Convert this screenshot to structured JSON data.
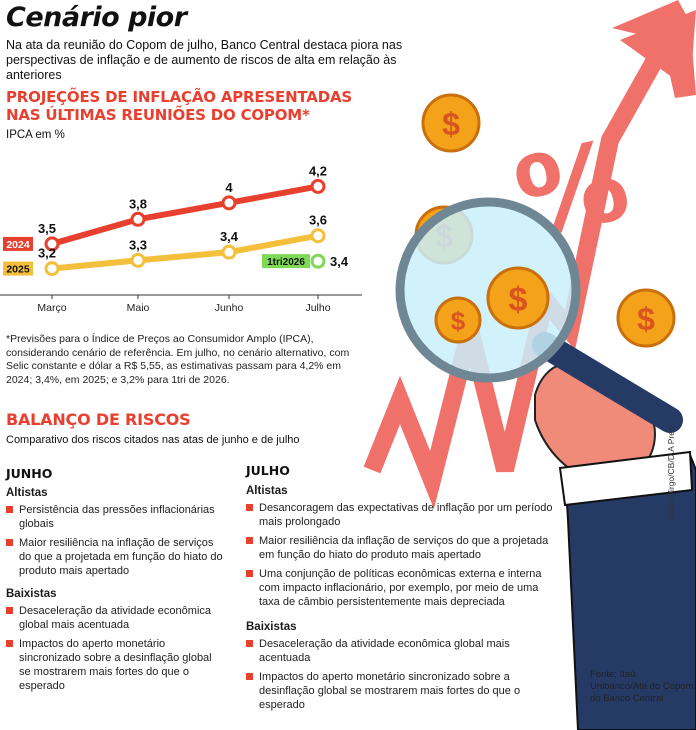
{
  "header": {
    "title": "Cenário pior",
    "subtitle": "Na ata da reunião do Copom de julho, Banco Central destaca piora nas perspectivas de inflação e de aumento de riscos de alta em relação às anteriores"
  },
  "projections": {
    "heading_line1": "PROJEÇÕES DE INFLAÇÃO APRESENTADAS",
    "heading_line2": "NAS ÚLTIMAS REUNIÕES DO COPOM*",
    "unit_label": "IPCA em %",
    "footnote": "*Previsões para o Índice de Preços ao Consumidor Amplo (IPCA), considerando cenário de referência. Em julho, no cenário alternativo, com Selic constante e dólar a R$ 5,55, as estimativas passam para 4,2% em 2024; 3,4%, em 2025; e 3,2% para 1tri de 2026."
  },
  "chart_data": {
    "type": "line",
    "categories": [
      "Março",
      "Maio",
      "Junho",
      "Julho"
    ],
    "series": [
      {
        "name": "2024",
        "values": [
          3.5,
          3.8,
          4.0,
          4.2
        ],
        "labels": [
          "3,5",
          "3,8",
          "4",
          "4,2"
        ],
        "color": "#e8402f"
      },
      {
        "name": "2025",
        "values": [
          3.2,
          3.3,
          3.4,
          3.6
        ],
        "labels": [
          "3,2",
          "3,3",
          "3,4",
          "3,6"
        ],
        "color": "#f4bf3a"
      }
    ],
    "extra_point": {
      "name": "1tri2026",
      "category": "Julho",
      "value": 3.4,
      "label": "3,4",
      "color": "#7ed957"
    },
    "ylim": [
      3.0,
      4.4
    ],
    "grid": false
  },
  "risks": {
    "heading": "BALANÇO DE RISCOS",
    "subheading": "Comparativo dos riscos citados nas atas de junho e de julho",
    "june": {
      "title": "JUNHO",
      "altistas_label": "Altistas",
      "altistas": [
        "Persistência das pressões inflacionárias globais",
        "Maior resiliência na inflação de serviços do que a projetada em função do hiato do produto mais apertado"
      ],
      "baixistas_label": "Baixistas",
      "baixistas": [
        "Desaceleração da atividade econômica global mais acentuada",
        "Impactos do aperto monetário sincronizado sobre a desinflação global se mostrarem mais fortes do que o esperado"
      ]
    },
    "july": {
      "title": "JULHO",
      "altistas_label": "Altistas",
      "altistas": [
        "Desancoragem das expectativas de inflação por um período mais prolongado",
        "Maior resiliência da inflação de serviços do que a projetada em função do hiato do produto mais apertado",
        "Uma conjunção de políticas econômicas externa e interna com impacto inflacionário, por exemplo, por meio de uma taxa de câmbio persistentemente mais depreciada"
      ],
      "baixistas_label": "Baixistas",
      "baixistas": [
        "Desaceleração da atividade econômica global mais acentuada",
        "Impactos do aperto monetário sincronizado sobre a desinflação global se mostrarem mais fortes do que o esperado"
      ]
    }
  },
  "illustration": {
    "percent_symbol": "%",
    "coin_symbol": "$",
    "credit": "Valdo Virgo/CB/D.A Press"
  },
  "source": "Fonte: Itaú Unibanco/Ata do Copom do Banco Central"
}
